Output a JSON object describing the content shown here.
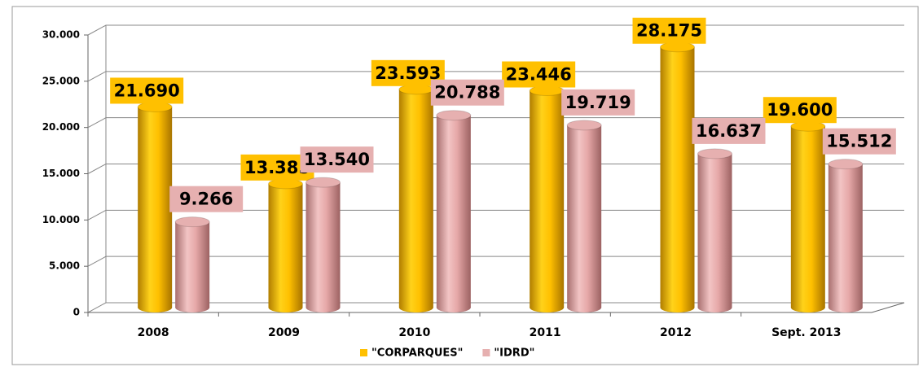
{
  "chart_data": {
    "type": "bar",
    "categories": [
      "2008",
      "2009",
      "2010",
      "2011",
      "2012",
      "Sept. 2013"
    ],
    "series": [
      {
        "name": "\"CORPARQUES\"",
        "color": "#ffc000",
        "values": [
          21690,
          13385,
          23593,
          23446,
          28175,
          19600
        ],
        "value_labels": [
          "21.690",
          "13.385",
          "23.593",
          "23.446",
          "28.175",
          "19.600"
        ]
      },
      {
        "name": "\"IDRD\"",
        "color": "#e6b0b0",
        "values": [
          9266,
          13540,
          20788,
          19719,
          16637,
          15512
        ],
        "value_labels": [
          "9.266",
          "13.540",
          "20.788",
          "19.719",
          "16.637",
          "15.512"
        ]
      }
    ],
    "ylim": [
      0,
      30000
    ],
    "yticks": [
      0,
      {
        "value": 5000,
        "label": "5.000"
      },
      {
        "value": 10000,
        "label": "10.000"
      },
      {
        "value": 15000,
        "label": "15.000"
      },
      {
        "value": 20000,
        "label": "20.000"
      },
      {
        "value": 25000,
        "label": "25.000"
      },
      {
        "value": 30000,
        "label": "30.000"
      }
    ],
    "grid": true,
    "legend": "bottom"
  }
}
